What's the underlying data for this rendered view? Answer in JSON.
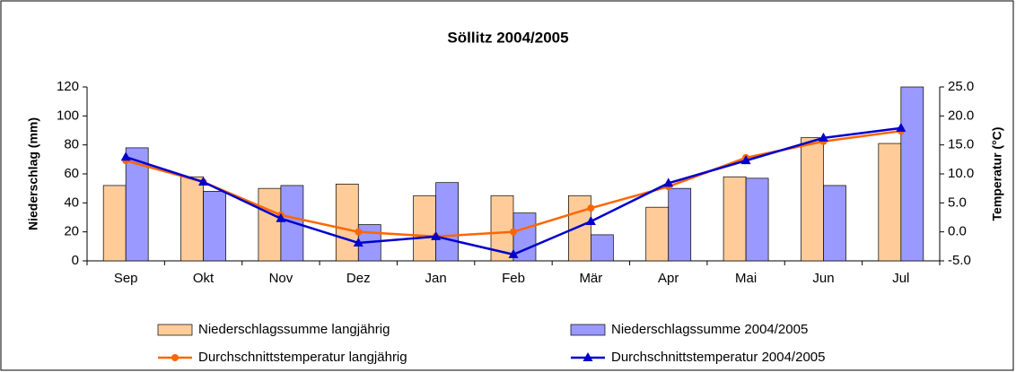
{
  "chart_data": {
    "type": "bar-line",
    "title": "Söllitz 2004/2005",
    "y_label": "Niederschlag (mm)",
    "y2_label": "Temperatur (°C)",
    "categories": [
      "Sep",
      "Okt",
      "Nov",
      "Dez",
      "Jan",
      "Feb",
      "Mär",
      "Apr",
      "Mai",
      "Jun",
      "Jul"
    ],
    "ylim": [
      0,
      120
    ],
    "yticks": [
      0,
      20,
      40,
      60,
      80,
      100,
      120
    ],
    "y2lim": [
      -5,
      25
    ],
    "y2ticks": [
      {
        "value": -5,
        "label": "-5.0"
      },
      {
        "value": 0,
        "label": "0.0"
      },
      {
        "value": 5,
        "label": "5.0"
      },
      {
        "value": 10,
        "label": "10.0"
      },
      {
        "value": 15,
        "label": "15.0"
      },
      {
        "value": 20,
        "label": "20.0"
      },
      {
        "value": 25,
        "label": "25.0"
      }
    ],
    "legend": "bottom",
    "series": [
      {
        "name": "Niederschlagssumme langjährig",
        "type": "bar",
        "color": "#ffcc99",
        "values": [
          52,
          58,
          50,
          53,
          45,
          45,
          45,
          37,
          58,
          85,
          81
        ]
      },
      {
        "name": "Niederschlagssumme 2004/2005",
        "type": "bar",
        "color": "#9999ff",
        "values": [
          78,
          48,
          52,
          25,
          54,
          33,
          18,
          50,
          57,
          52,
          120
        ]
      },
      {
        "name": "Durchschnittstemperatur langjährig",
        "type": "line",
        "axis": "y2",
        "marker": "circle",
        "color": "#ff6600",
        "values": [
          12.3,
          8.6,
          2.9,
          0.0,
          -0.8,
          0.0,
          4.1,
          7.8,
          12.8,
          15.6,
          17.4
        ]
      },
      {
        "name": "Durchschnittstemperatur 2004/2005",
        "type": "line",
        "axis": "y2",
        "marker": "triangle",
        "color": "#0000cc",
        "values": [
          12.9,
          8.6,
          2.3,
          -1.9,
          -0.8,
          -3.9,
          1.8,
          8.4,
          12.3,
          16.2,
          17.9
        ]
      }
    ]
  }
}
